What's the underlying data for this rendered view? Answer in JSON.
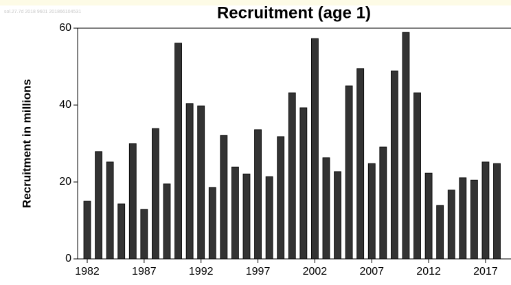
{
  "chart_data": {
    "type": "bar",
    "title": "Recruitment (age 1)",
    "annotation": "sol.27.7d 2018 9601 201866104531",
    "y_label": "Recruitment in millions",
    "categories": [
      "1982",
      null,
      null,
      null,
      null,
      "1987",
      null,
      null,
      null,
      null,
      "1992",
      null,
      null,
      null,
      null,
      "1997",
      null,
      null,
      null,
      null,
      "2002",
      null,
      null,
      null,
      null,
      "2007",
      null,
      null,
      null,
      null,
      "2012",
      null,
      null,
      null,
      null,
      "2017",
      null
    ],
    "values": [
      15,
      27.9,
      25.2,
      14.3,
      30,
      12.9,
      33.9,
      19.5,
      56.1,
      40.4,
      39.8,
      18.6,
      32.1,
      23.9,
      22.1,
      33.6,
      21.4,
      31.8,
      43.2,
      39.3,
      57.3,
      26.3,
      22.7,
      45,
      49.5,
      24.8,
      29.1,
      48.9,
      58.9,
      43.2,
      22.3,
      13.9,
      17.9,
      21.1,
      20.5,
      25.2,
      24.8
    ],
    "color": "#333333",
    "ylim": [
      0,
      60
    ],
    "yticks": [
      0,
      20,
      40,
      60
    ],
    "grid": false
  }
}
